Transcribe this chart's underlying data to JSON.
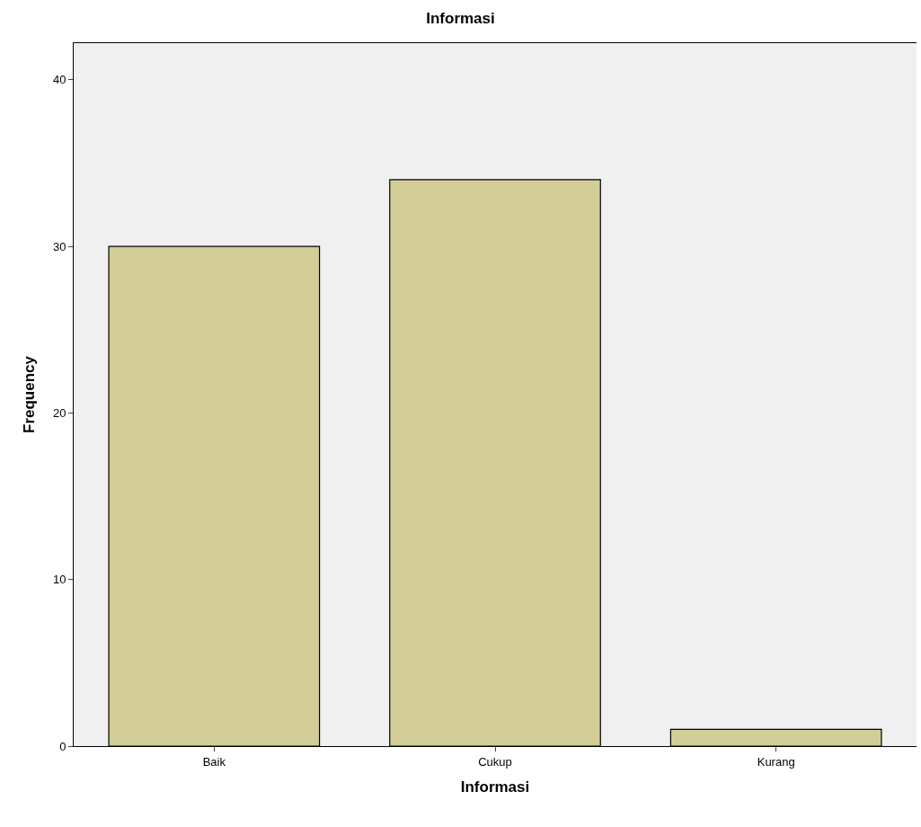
{
  "chart_data": {
    "type": "bar",
    "title": "Informasi",
    "xlabel": "Informasi",
    "ylabel": "Frequency",
    "categories": [
      "Baik",
      "Cukup",
      "Kurang"
    ],
    "values": [
      30,
      34,
      1
    ],
    "color": "#d3ce97",
    "ylim": [
      0,
      42.2
    ],
    "yticks": [
      0,
      10,
      20,
      30,
      40
    ],
    "grid": false,
    "legend": false
  }
}
